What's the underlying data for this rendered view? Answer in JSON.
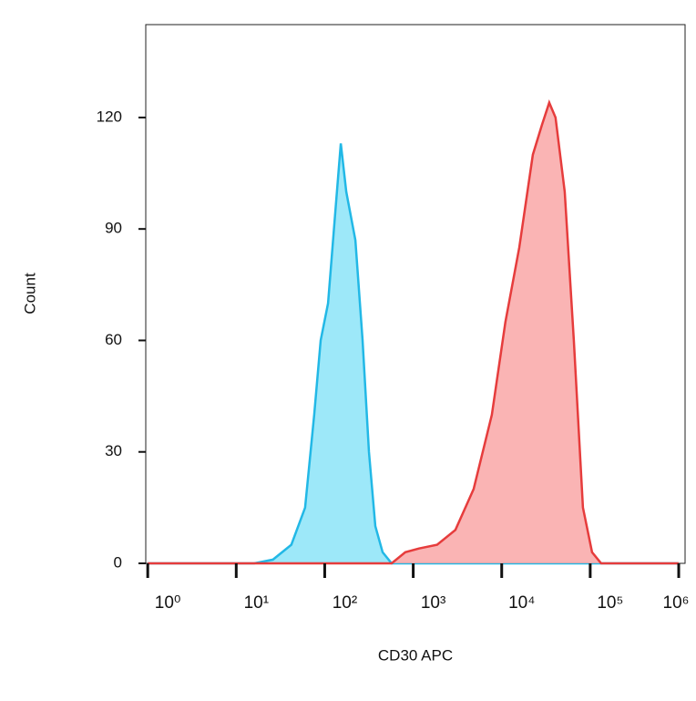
{
  "chart_data": {
    "type": "histogram-overlay",
    "x_label": "CD30 APC",
    "y_label": "Count",
    "xscale": "log",
    "xlim": [
      0.95,
      1180000
    ],
    "ylim": [
      0,
      145
    ],
    "xticks": [
      {
        "value": 1,
        "label": "10⁰"
      },
      {
        "value": 10,
        "label": "10¹"
      },
      {
        "value": 100,
        "label": "10²"
      },
      {
        "value": 1000,
        "label": "10³"
      },
      {
        "value": 10000,
        "label": "10⁴"
      },
      {
        "value": 100000,
        "label": "10⁵"
      },
      {
        "value": 1000000,
        "label": "10⁶"
      }
    ],
    "yticks": [
      0,
      30,
      60,
      90,
      120
    ],
    "series": [
      {
        "color": "#22b8e6",
        "fill": "#8ce4f8",
        "x": [
          1,
          16,
          26,
          42,
          60,
          76,
          90,
          109,
          132,
          152,
          175,
          222,
          268,
          316,
          373,
          451,
          571,
          1000000
        ],
        "values": [
          0,
          0,
          1,
          5,
          15,
          40,
          60,
          70,
          95,
          113,
          100,
          87,
          60,
          30,
          10,
          3,
          0,
          0
        ]
      },
      {
        "color": "#e63c3c",
        "fill": "#f9a7a7",
        "x": [
          1,
          571,
          813,
          1160,
          1860,
          3000,
          4820,
          7740,
          11000,
          15800,
          22500,
          28500,
          34400,
          40600,
          51500,
          65300,
          82800,
          105000,
          133000,
          1000000
        ],
        "values": [
          0,
          0,
          3,
          4,
          5,
          9,
          20,
          40,
          65,
          85,
          110,
          118,
          124,
          120,
          100,
          60,
          15,
          3,
          0,
          0
        ]
      }
    ]
  }
}
